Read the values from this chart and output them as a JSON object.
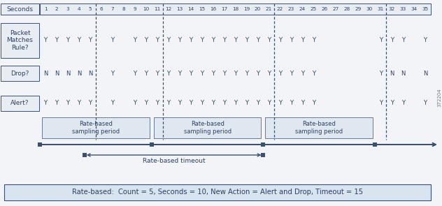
{
  "title": "Rate-based:  Count = 5, Seconds = 10, New Action = Alert and Drop, Timeout = 15",
  "packet_matches": [
    1,
    2,
    3,
    4,
    5,
    7,
    9,
    10,
    11,
    12,
    13,
    14,
    15,
    16,
    17,
    18,
    19,
    20,
    21,
    22,
    23,
    24,
    25,
    31,
    32,
    33,
    35
  ],
  "drop_values": {
    "1": "N",
    "2": "N",
    "3": "N",
    "4": "N",
    "5": "N",
    "7": "Y",
    "9": "Y",
    "10": "Y",
    "11": "Y",
    "12": "Y",
    "13": "Y",
    "14": "Y",
    "15": "Y",
    "16": "Y",
    "17": "Y",
    "18": "Y",
    "19": "Y",
    "20": "Y",
    "21": "Y",
    "22": "Y",
    "23": "Y",
    "24": "Y",
    "25": "Y",
    "31": "Y",
    "32": "N",
    "33": "N",
    "35": "N"
  },
  "alert_matches": [
    1,
    2,
    3,
    4,
    5,
    7,
    9,
    10,
    11,
    12,
    13,
    14,
    15,
    16,
    17,
    18,
    19,
    20,
    21,
    22,
    23,
    24,
    25,
    31,
    32,
    33,
    35
  ],
  "dashed_at_seconds": [
    5,
    11,
    21,
    31
  ],
  "timeline_squares_at": [
    1,
    11,
    21,
    31
  ],
  "timeout_squares_at": [
    5,
    21
  ],
  "sampling_periods": [
    [
      1,
      11,
      "Rate-based\nsampling period"
    ],
    [
      11,
      21,
      "Rate-based\nsampling period"
    ],
    [
      21,
      31,
      "Rate-based\nsampling period"
    ]
  ],
  "bg_main": "#f2f4f7",
  "bg_box": "#e8edf4",
  "bg_period": "#dce6f0",
  "bg_info": "#d8e4f0",
  "border_color": "#3a4f72",
  "text_color": "#2e3f60",
  "annotation_id": "372204",
  "figsize": [
    6.32,
    2.95
  ],
  "dpi": 100
}
